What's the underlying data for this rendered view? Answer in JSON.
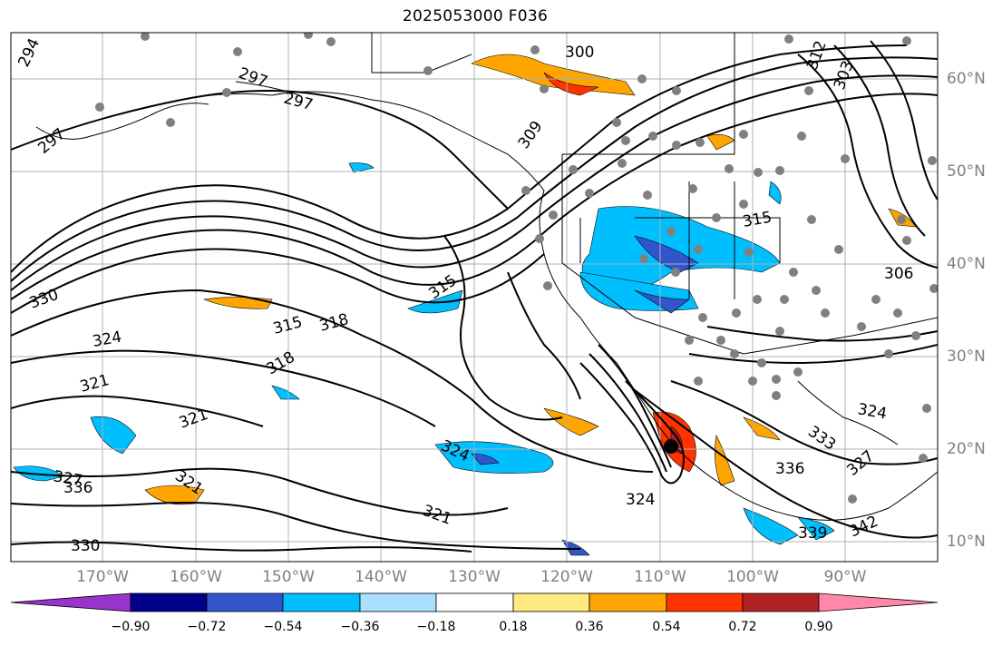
{
  "title": "2025053000 F036",
  "latitude_labels": [
    "60°N",
    "50°N",
    "40°N",
    "30°N",
    "20°N",
    "10°N"
  ],
  "longitude_labels": [
    "170°W",
    "160°W",
    "150°W",
    "140°W",
    "130°W",
    "120°W",
    "110°W",
    "100°W",
    "90°W"
  ],
  "colorbar": {
    "ticks": [
      "−0.90",
      "−0.72",
      "−0.54",
      "−0.36",
      "−0.18",
      "0.18",
      "0.36",
      "0.54",
      "0.72",
      "0.90"
    ],
    "colors": [
      "#9933cc",
      "#00008b",
      "#3355cc",
      "#00bfff",
      "#aadfff",
      "#ffffff",
      "#ffea80",
      "#ffa500",
      "#ff3300",
      "#b22222",
      "#ff88aa"
    ]
  },
  "contour_labels": [
    "294",
    "297",
    "297",
    "297",
    "300",
    "303",
    "306",
    "309",
    "312",
    "315",
    "315",
    "315",
    "318",
    "318",
    "321",
    "321",
    "321",
    "321",
    "324",
    "324",
    "324",
    "324",
    "327",
    "327",
    "330",
    "330",
    "333",
    "336",
    "336",
    "339",
    "342"
  ]
}
